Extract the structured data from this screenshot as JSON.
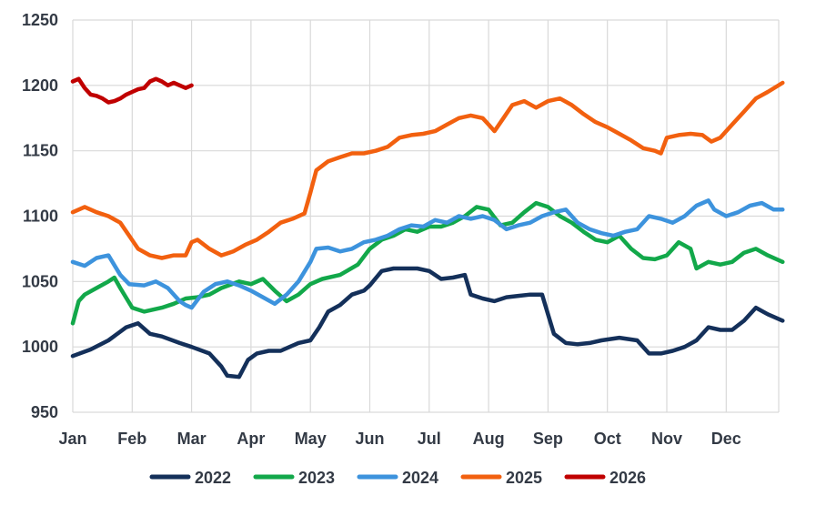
{
  "chart_data": {
    "type": "line",
    "title": "",
    "xlabel": "",
    "ylabel": "",
    "x_categories": [
      "Jan",
      "Feb",
      "Mar",
      "Apr",
      "May",
      "Jun",
      "Jul",
      "Aug",
      "Sep",
      "Oct",
      "Nov",
      "Dec"
    ],
    "ylim": [
      950,
      1250
    ],
    "y_ticks": [
      950,
      1000,
      1050,
      1100,
      1150,
      1200,
      1250
    ],
    "grid": true,
    "legend_position": "bottom",
    "series": [
      {
        "name": "2022",
        "color": "#14305a",
        "points": [
          [
            1.0,
            993
          ],
          [
            1.3,
            998
          ],
          [
            1.6,
            1005
          ],
          [
            1.9,
            1015
          ],
          [
            2.1,
            1018
          ],
          [
            2.3,
            1010
          ],
          [
            2.5,
            1008
          ],
          [
            2.8,
            1003
          ],
          [
            3.0,
            1000
          ],
          [
            3.3,
            995
          ],
          [
            3.5,
            985
          ],
          [
            3.6,
            978
          ],
          [
            3.8,
            977
          ],
          [
            3.95,
            990
          ],
          [
            4.1,
            995
          ],
          [
            4.3,
            997
          ],
          [
            4.5,
            997
          ],
          [
            4.8,
            1003
          ],
          [
            5.0,
            1005
          ],
          [
            5.15,
            1015
          ],
          [
            5.3,
            1027
          ],
          [
            5.5,
            1032
          ],
          [
            5.7,
            1040
          ],
          [
            5.9,
            1043
          ],
          [
            6.0,
            1047
          ],
          [
            6.2,
            1058
          ],
          [
            6.4,
            1060
          ],
          [
            6.6,
            1060
          ],
          [
            6.8,
            1060
          ],
          [
            7.0,
            1058
          ],
          [
            7.2,
            1052
          ],
          [
            7.4,
            1053
          ],
          [
            7.6,
            1055
          ],
          [
            7.7,
            1040
          ],
          [
            7.9,
            1037
          ],
          [
            8.1,
            1035
          ],
          [
            8.3,
            1038
          ],
          [
            8.5,
            1039
          ],
          [
            8.7,
            1040
          ],
          [
            8.9,
            1040
          ],
          [
            9.0,
            1025
          ],
          [
            9.1,
            1010
          ],
          [
            9.3,
            1003
          ],
          [
            9.5,
            1002
          ],
          [
            9.7,
            1003
          ],
          [
            9.9,
            1005
          ],
          [
            10.2,
            1007
          ],
          [
            10.5,
            1005
          ],
          [
            10.7,
            995
          ],
          [
            10.9,
            995
          ],
          [
            11.1,
            997
          ],
          [
            11.3,
            1000
          ],
          [
            11.5,
            1005
          ],
          [
            11.7,
            1015
          ],
          [
            11.9,
            1013
          ],
          [
            12.1,
            1013
          ],
          [
            12.3,
            1020
          ],
          [
            12.5,
            1030
          ],
          [
            12.7,
            1025
          ],
          [
            12.95,
            1020
          ]
        ]
      },
      {
        "name": "2023",
        "color": "#12a84a",
        "points": [
          [
            1.0,
            1018
          ],
          [
            1.1,
            1035
          ],
          [
            1.2,
            1040
          ],
          [
            1.4,
            1045
          ],
          [
            1.6,
            1050
          ],
          [
            1.7,
            1053
          ],
          [
            1.8,
            1045
          ],
          [
            2.0,
            1030
          ],
          [
            2.2,
            1027
          ],
          [
            2.5,
            1030
          ],
          [
            2.7,
            1033
          ],
          [
            2.9,
            1037
          ],
          [
            3.1,
            1038
          ],
          [
            3.3,
            1040
          ],
          [
            3.5,
            1045
          ],
          [
            3.8,
            1050
          ],
          [
            4.0,
            1048
          ],
          [
            4.2,
            1052
          ],
          [
            4.4,
            1043
          ],
          [
            4.6,
            1035
          ],
          [
            4.8,
            1040
          ],
          [
            5.0,
            1048
          ],
          [
            5.2,
            1052
          ],
          [
            5.5,
            1055
          ],
          [
            5.8,
            1063
          ],
          [
            6.0,
            1075
          ],
          [
            6.2,
            1082
          ],
          [
            6.4,
            1085
          ],
          [
            6.6,
            1090
          ],
          [
            6.8,
            1088
          ],
          [
            7.0,
            1092
          ],
          [
            7.2,
            1092
          ],
          [
            7.4,
            1095
          ],
          [
            7.6,
            1100
          ],
          [
            7.8,
            1107
          ],
          [
            8.0,
            1105
          ],
          [
            8.2,
            1093
          ],
          [
            8.4,
            1095
          ],
          [
            8.6,
            1103
          ],
          [
            8.8,
            1110
          ],
          [
            9.0,
            1107
          ],
          [
            9.2,
            1100
          ],
          [
            9.4,
            1095
          ],
          [
            9.6,
            1088
          ],
          [
            9.8,
            1082
          ],
          [
            10.0,
            1080
          ],
          [
            10.2,
            1085
          ],
          [
            10.4,
            1075
          ],
          [
            10.6,
            1068
          ],
          [
            10.8,
            1067
          ],
          [
            11.0,
            1070
          ],
          [
            11.2,
            1080
          ],
          [
            11.4,
            1075
          ],
          [
            11.5,
            1060
          ],
          [
            11.7,
            1065
          ],
          [
            11.9,
            1063
          ],
          [
            12.1,
            1065
          ],
          [
            12.3,
            1072
          ],
          [
            12.5,
            1075
          ],
          [
            12.7,
            1070
          ],
          [
            12.95,
            1065
          ]
        ]
      },
      {
        "name": "2024",
        "color": "#3d93dd",
        "points": [
          [
            1.0,
            1065
          ],
          [
            1.2,
            1062
          ],
          [
            1.4,
            1068
          ],
          [
            1.6,
            1070
          ],
          [
            1.8,
            1055
          ],
          [
            1.95,
            1048
          ],
          [
            2.2,
            1047
          ],
          [
            2.4,
            1050
          ],
          [
            2.6,
            1045
          ],
          [
            2.8,
            1035
          ],
          [
            2.9,
            1032
          ],
          [
            3.0,
            1030
          ],
          [
            3.2,
            1042
          ],
          [
            3.4,
            1048
          ],
          [
            3.6,
            1050
          ],
          [
            3.8,
            1047
          ],
          [
            4.0,
            1043
          ],
          [
            4.2,
            1038
          ],
          [
            4.4,
            1033
          ],
          [
            4.6,
            1040
          ],
          [
            4.8,
            1050
          ],
          [
            5.0,
            1065
          ],
          [
            5.1,
            1075
          ],
          [
            5.3,
            1076
          ],
          [
            5.5,
            1073
          ],
          [
            5.7,
            1075
          ],
          [
            5.9,
            1080
          ],
          [
            6.1,
            1082
          ],
          [
            6.3,
            1085
          ],
          [
            6.5,
            1090
          ],
          [
            6.7,
            1093
          ],
          [
            6.9,
            1092
          ],
          [
            7.1,
            1097
          ],
          [
            7.3,
            1095
          ],
          [
            7.5,
            1100
          ],
          [
            7.7,
            1098
          ],
          [
            7.9,
            1100
          ],
          [
            8.1,
            1097
          ],
          [
            8.3,
            1090
          ],
          [
            8.5,
            1093
          ],
          [
            8.7,
            1095
          ],
          [
            8.9,
            1100
          ],
          [
            9.1,
            1103
          ],
          [
            9.3,
            1105
          ],
          [
            9.5,
            1095
          ],
          [
            9.7,
            1090
          ],
          [
            9.9,
            1087
          ],
          [
            10.1,
            1085
          ],
          [
            10.3,
            1088
          ],
          [
            10.5,
            1090
          ],
          [
            10.7,
            1100
          ],
          [
            10.9,
            1098
          ],
          [
            11.1,
            1095
          ],
          [
            11.3,
            1100
          ],
          [
            11.5,
            1108
          ],
          [
            11.7,
            1112
          ],
          [
            11.8,
            1105
          ],
          [
            12.0,
            1100
          ],
          [
            12.2,
            1103
          ],
          [
            12.4,
            1108
          ],
          [
            12.6,
            1110
          ],
          [
            12.8,
            1105
          ],
          [
            12.95,
            1105
          ]
        ]
      },
      {
        "name": "2025",
        "color": "#f2600f",
        "points": [
          [
            1.0,
            1103
          ],
          [
            1.2,
            1107
          ],
          [
            1.4,
            1103
          ],
          [
            1.6,
            1100
          ],
          [
            1.8,
            1095
          ],
          [
            1.95,
            1085
          ],
          [
            2.1,
            1075
          ],
          [
            2.3,
            1070
          ],
          [
            2.5,
            1068
          ],
          [
            2.7,
            1070
          ],
          [
            2.9,
            1070
          ],
          [
            3.0,
            1080
          ],
          [
            3.1,
            1082
          ],
          [
            3.3,
            1075
          ],
          [
            3.5,
            1070
          ],
          [
            3.7,
            1073
          ],
          [
            3.9,
            1078
          ],
          [
            4.1,
            1082
          ],
          [
            4.3,
            1088
          ],
          [
            4.5,
            1095
          ],
          [
            4.7,
            1098
          ],
          [
            4.9,
            1102
          ],
          [
            5.0,
            1118
          ],
          [
            5.1,
            1135
          ],
          [
            5.3,
            1142
          ],
          [
            5.5,
            1145
          ],
          [
            5.7,
            1148
          ],
          [
            5.9,
            1148
          ],
          [
            6.1,
            1150
          ],
          [
            6.3,
            1153
          ],
          [
            6.5,
            1160
          ],
          [
            6.7,
            1162
          ],
          [
            6.9,
            1163
          ],
          [
            7.1,
            1165
          ],
          [
            7.3,
            1170
          ],
          [
            7.5,
            1175
          ],
          [
            7.7,
            1177
          ],
          [
            7.9,
            1175
          ],
          [
            8.0,
            1170
          ],
          [
            8.1,
            1165
          ],
          [
            8.25,
            1175
          ],
          [
            8.4,
            1185
          ],
          [
            8.6,
            1188
          ],
          [
            8.8,
            1183
          ],
          [
            9.0,
            1188
          ],
          [
            9.2,
            1190
          ],
          [
            9.4,
            1185
          ],
          [
            9.6,
            1178
          ],
          [
            9.8,
            1172
          ],
          [
            10.0,
            1168
          ],
          [
            10.2,
            1163
          ],
          [
            10.4,
            1158
          ],
          [
            10.6,
            1152
          ],
          [
            10.8,
            1150
          ],
          [
            10.9,
            1148
          ],
          [
            11.0,
            1160
          ],
          [
            11.2,
            1162
          ],
          [
            11.4,
            1163
          ],
          [
            11.6,
            1162
          ],
          [
            11.75,
            1157
          ],
          [
            11.9,
            1160
          ],
          [
            12.1,
            1170
          ],
          [
            12.3,
            1180
          ],
          [
            12.5,
            1190
          ],
          [
            12.7,
            1195
          ],
          [
            12.95,
            1202
          ]
        ]
      },
      {
        "name": "2026",
        "color": "#c00000",
        "points": [
          [
            1.0,
            1203
          ],
          [
            1.1,
            1205
          ],
          [
            1.2,
            1198
          ],
          [
            1.3,
            1193
          ],
          [
            1.4,
            1192
          ],
          [
            1.5,
            1190
          ],
          [
            1.6,
            1187
          ],
          [
            1.7,
            1188
          ],
          [
            1.8,
            1190
          ],
          [
            1.9,
            1193
          ],
          [
            2.0,
            1195
          ],
          [
            2.1,
            1197
          ],
          [
            2.2,
            1198
          ],
          [
            2.3,
            1203
          ],
          [
            2.4,
            1205
          ],
          [
            2.5,
            1203
          ],
          [
            2.6,
            1200
          ],
          [
            2.7,
            1202
          ],
          [
            2.8,
            1200
          ],
          [
            2.9,
            1198
          ],
          [
            3.0,
            1200
          ]
        ]
      }
    ]
  }
}
